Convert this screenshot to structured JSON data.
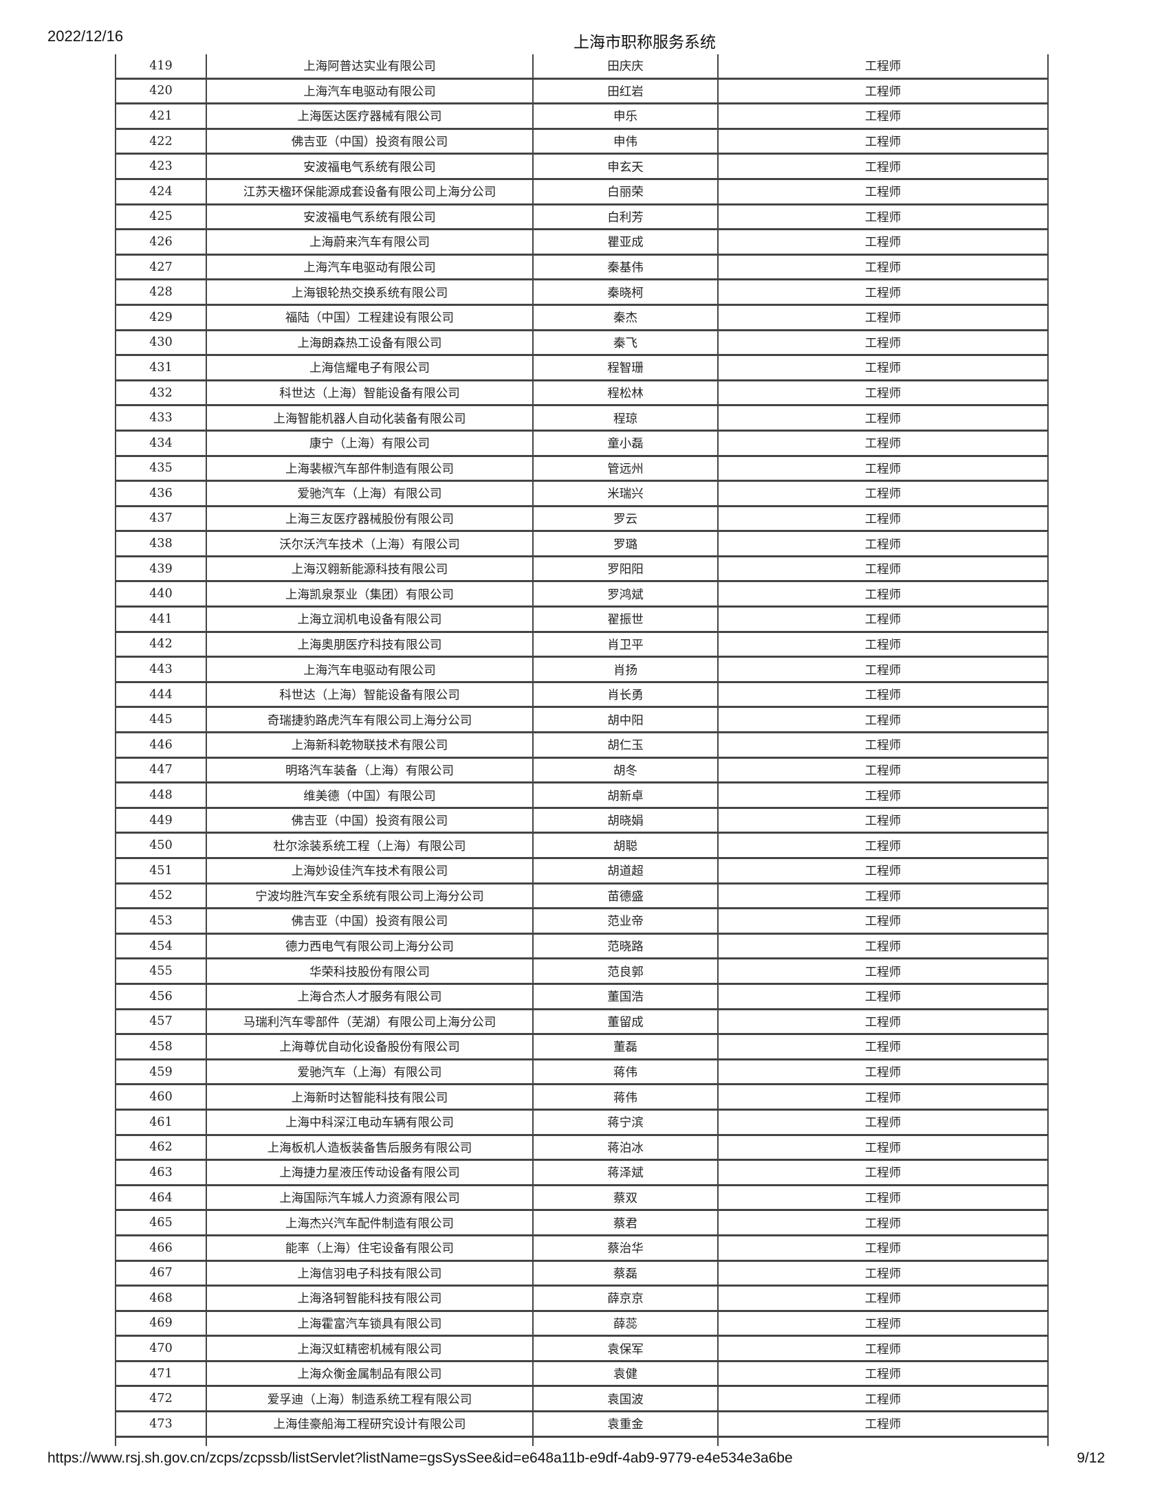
{
  "header": {
    "date": "2022/12/16",
    "title": "上海市职称服务系统"
  },
  "footer": {
    "url": "https://www.rsj.sh.gov.cn/zcps/zcpssb/listServlet?listName=gsSysSee&id=e648a11b-e9df-4ab9-9779-e4e534e3a6be",
    "page": "9/12"
  },
  "table": {
    "rows": [
      [
        "419",
        "上海阿普达实业有限公司",
        "田庆庆",
        "工程师"
      ],
      [
        "420",
        "上海汽车电驱动有限公司",
        "田红岩",
        "工程师"
      ],
      [
        "421",
        "上海医达医疗器械有限公司",
        "申乐",
        "工程师"
      ],
      [
        "422",
        "佛吉亚（中国）投资有限公司",
        "申伟",
        "工程师"
      ],
      [
        "423",
        "安波福电气系统有限公司",
        "申玄天",
        "工程师"
      ],
      [
        "424",
        "江苏天楹环保能源成套设备有限公司上海分公司",
        "白丽荣",
        "工程师"
      ],
      [
        "425",
        "安波福电气系统有限公司",
        "白利芳",
        "工程师"
      ],
      [
        "426",
        "上海蔚来汽车有限公司",
        "瞿亚成",
        "工程师"
      ],
      [
        "427",
        "上海汽车电驱动有限公司",
        "秦基伟",
        "工程师"
      ],
      [
        "428",
        "上海银轮热交换系统有限公司",
        "秦晓柯",
        "工程师"
      ],
      [
        "429",
        "福陆（中国）工程建设有限公司",
        "秦杰",
        "工程师"
      ],
      [
        "430",
        "上海朗森热工设备有限公司",
        "秦飞",
        "工程师"
      ],
      [
        "431",
        "上海信耀电子有限公司",
        "程智珊",
        "工程师"
      ],
      [
        "432",
        "科世达（上海）智能设备有限公司",
        "程松林",
        "工程师"
      ],
      [
        "433",
        "上海智能机器人自动化装备有限公司",
        "程琼",
        "工程师"
      ],
      [
        "434",
        "康宁（上海）有限公司",
        "童小磊",
        "工程师"
      ],
      [
        "435",
        "上海裴椒汽车部件制造有限公司",
        "管远州",
        "工程师"
      ],
      [
        "436",
        "爱驰汽车（上海）有限公司",
        "米瑞兴",
        "工程师"
      ],
      [
        "437",
        "上海三友医疗器械股份有限公司",
        "罗云",
        "工程师"
      ],
      [
        "438",
        "沃尔沃汽车技术（上海）有限公司",
        "罗璐",
        "工程师"
      ],
      [
        "439",
        "上海汉翱新能源科技有限公司",
        "罗阳阳",
        "工程师"
      ],
      [
        "440",
        "上海凯泉泵业（集团）有限公司",
        "罗鸿斌",
        "工程师"
      ],
      [
        "441",
        "上海立润机电设备有限公司",
        "翟振世",
        "工程师"
      ],
      [
        "442",
        "上海奥朋医疗科技有限公司",
        "肖卫平",
        "工程师"
      ],
      [
        "443",
        "上海汽车电驱动有限公司",
        "肖扬",
        "工程师"
      ],
      [
        "444",
        "科世达（上海）智能设备有限公司",
        "肖长勇",
        "工程师"
      ],
      [
        "445",
        "奇瑞捷豹路虎汽车有限公司上海分公司",
        "胡中阳",
        "工程师"
      ],
      [
        "446",
        "上海新科乾物联技术有限公司",
        "胡仁玉",
        "工程师"
      ],
      [
        "447",
        "明珞汽车装备（上海）有限公司",
        "胡冬",
        "工程师"
      ],
      [
        "448",
        "维美德（中国）有限公司",
        "胡新卓",
        "工程师"
      ],
      [
        "449",
        "佛吉亚（中国）投资有限公司",
        "胡晓娟",
        "工程师"
      ],
      [
        "450",
        "杜尔涂装系统工程（上海）有限公司",
        "胡聪",
        "工程师"
      ],
      [
        "451",
        "上海妙设佳汽车技术有限公司",
        "胡道超",
        "工程师"
      ],
      [
        "452",
        "宁波均胜汽车安全系统有限公司上海分公司",
        "苗德盛",
        "工程师"
      ],
      [
        "453",
        "佛吉亚（中国）投资有限公司",
        "范业帝",
        "工程师"
      ],
      [
        "454",
        "德力西电气有限公司上海分公司",
        "范晓路",
        "工程师"
      ],
      [
        "455",
        "华荣科技股份有限公司",
        "范良郭",
        "工程师"
      ],
      [
        "456",
        "上海合杰人才服务有限公司",
        "董国浩",
        "工程师"
      ],
      [
        "457",
        "马瑞利汽车零部件（芜湖）有限公司上海分公司",
        "董留成",
        "工程师"
      ],
      [
        "458",
        "上海尊优自动化设备股份有限公司",
        "董磊",
        "工程师"
      ],
      [
        "459",
        "爱驰汽车（上海）有限公司",
        "蒋伟",
        "工程师"
      ],
      [
        "460",
        "上海新时达智能科技有限公司",
        "蒋伟",
        "工程师"
      ],
      [
        "461",
        "上海中科深江电动车辆有限公司",
        "蒋宁滨",
        "工程师"
      ],
      [
        "462",
        "上海板机人造板装备售后服务有限公司",
        "蒋泊冰",
        "工程师"
      ],
      [
        "463",
        "上海捷力星液压传动设备有限公司",
        "蒋泽斌",
        "工程师"
      ],
      [
        "464",
        "上海国际汽车城人力资源有限公司",
        "蔡双",
        "工程师"
      ],
      [
        "465",
        "上海杰兴汽车配件制造有限公司",
        "蔡君",
        "工程师"
      ],
      [
        "466",
        "能率（上海）住宅设备有限公司",
        "蔡治华",
        "工程师"
      ],
      [
        "467",
        "上海信羽电子科技有限公司",
        "蔡磊",
        "工程师"
      ],
      [
        "468",
        "上海洛轲智能科技有限公司",
        "薛京京",
        "工程师"
      ],
      [
        "469",
        "上海霍富汽车锁具有限公司",
        "薛蕊",
        "工程师"
      ],
      [
        "470",
        "上海汉虹精密机械有限公司",
        "袁保军",
        "工程师"
      ],
      [
        "471",
        "上海众衡金属制品有限公司",
        "袁健",
        "工程师"
      ],
      [
        "472",
        "爱孚迪（上海）制造系统工程有限公司",
        "袁国波",
        "工程师"
      ],
      [
        "473",
        "上海佳豪船海工程研究设计有限公司",
        "袁重金",
        "工程师"
      ]
    ]
  }
}
